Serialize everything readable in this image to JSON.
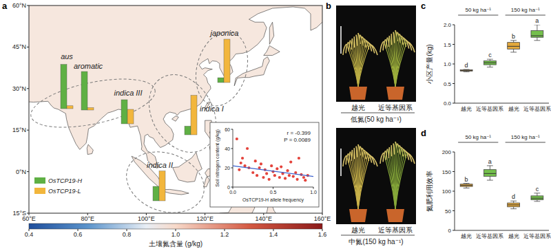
{
  "panel_labels": [
    "a",
    "b",
    "c",
    "d"
  ],
  "chart_data": [
    {
      "type": "map",
      "xlim": [
        60,
        160
      ],
      "xticks": [
        {
          "value": 60,
          "label": "60°E"
        },
        {
          "value": 80,
          "label": "80°E"
        },
        {
          "value": 100,
          "label": "100°E"
        },
        {
          "value": 120,
          "label": "120°E"
        },
        {
          "value": 140,
          "label": "140°E"
        },
        {
          "value": 160,
          "label": "160°E"
        }
      ],
      "ylim": [
        -15,
        60
      ],
      "yticks": [
        {
          "value": 60,
          "label": "60°N"
        },
        {
          "value": 45,
          "label": "45°N"
        },
        {
          "value": 30,
          "label": "30°N"
        },
        {
          "value": 15,
          "label": "15°N"
        },
        {
          "value": 0,
          "label": "0°N"
        },
        {
          "value": -15,
          "label": "15°S"
        }
      ],
      "color_bar": {
        "label": "土壤氮含量 (g/kg)",
        "range": [
          0.4,
          1.6
        ],
        "ticks": [
          0.4,
          0.6,
          0.8,
          {
            "value": 1,
            "label": "1.0"
          },
          1.2,
          1.4,
          1.6
        ]
      }
    },
    {
      "type": "bar",
      "categories": [
        "aus",
        "aromatic",
        "indica III",
        "indica I",
        "indica II",
        "japonica"
      ],
      "series": [
        {
          "name": "OsTCP19-H",
          "color": "#5fb044",
          "values": [
            0.92,
            0.8,
            0.5,
            0.18,
            0.3,
            0.1
          ]
        },
        {
          "name": "OsTCP19-L",
          "color": "#f2b63c",
          "values": [
            0.06,
            0.05,
            0.3,
            0.82,
            0.62,
            0.9
          ]
        }
      ],
      "ylim": [
        0,
        1
      ],
      "tick_labels": false,
      "legend": "lower left"
    },
    {
      "type": "scatter",
      "x_label": "OsTCP19-H allele frequency",
      "y_label": "Soil nitrogen content (g/kg)",
      "xlim": [
        0,
        1
      ],
      "xticks": [
        {
          "value": 0,
          "label": "0.0"
        },
        {
          "value": 0.5,
          "label": "0.5"
        },
        {
          "value": 1,
          "label": "1.0"
        }
      ],
      "ylim": [
        0,
        60
      ],
      "yticks": [
        0,
        20,
        40,
        60
      ],
      "annotations": [
        "r = -0.399",
        "P = 0.0089"
      ],
      "series": [
        {
          "type": "scatter",
          "marker": "circle",
          "color": "#e4433b",
          "x": [
            0.05,
            0.08,
            0.1,
            0.12,
            0.15,
            0.18,
            0.2,
            0.25,
            0.28,
            0.3,
            0.33,
            0.35,
            0.38,
            0.4,
            0.42,
            0.45,
            0.48,
            0.5,
            0.52,
            0.55,
            0.58,
            0.6,
            0.62,
            0.65,
            0.68,
            0.7,
            0.72,
            0.75,
            0.78,
            0.8,
            0.82,
            0.85,
            0.88,
            0.9,
            0.93
          ],
          "values": [
            50,
            18,
            25,
            30,
            22,
            40,
            20,
            15,
            27,
            12,
            20,
            24,
            10,
            18,
            14,
            8,
            22,
            16,
            12,
            19,
            10,
            21,
            14,
            9,
            17,
            12,
            26,
            11,
            15,
            8,
            30,
            13,
            10,
            7,
            12
          ]
        },
        {
          "type": "line",
          "line_style": "solid",
          "color": "#3a5fcd",
          "x": [
            0,
            1
          ],
          "values": [
            22,
            11
          ]
        }
      ]
    },
    {
      "type": "box",
      "y_label": "小区产量(kg)",
      "categories": [
        "越光",
        "近等基因系",
        "越光",
        "近等基因系"
      ],
      "groups": [
        "50 kg ha⁻¹",
        "150 kg ha⁻¹"
      ],
      "colors": [
        "#e3a83b",
        "#74c04c",
        "#e3a83b",
        "#74c04c"
      ],
      "min": [
        0.8,
        0.92,
        1.3,
        1.6
      ],
      "q1": [
        0.82,
        0.98,
        1.38,
        1.68
      ],
      "median": [
        0.83,
        1.03,
        1.45,
        1.72
      ],
      "q3": [
        0.85,
        1.08,
        1.55,
        1.85
      ],
      "max": [
        0.86,
        1.12,
        1.6,
        2.0
      ],
      "annotations": [
        "d",
        "c",
        "b",
        "a"
      ],
      "ylim": [
        0,
        2
      ],
      "yticks": [
        {
          "value": 0,
          "label": "0.0"
        },
        {
          "value": 0.5,
          "label": "0.5"
        },
        {
          "value": 1,
          "label": "1.0"
        },
        {
          "value": 1.5,
          "label": "1.5"
        },
        {
          "value": 2,
          "label": "2.0"
        }
      ]
    },
    {
      "type": "box",
      "y_label": "氮肥利用效率",
      "categories": [
        "越光",
        "近等基因系",
        "越光",
        "近等基因系"
      ],
      "groups": [
        "50 kg ha⁻¹",
        "150 kg ha⁻¹"
      ],
      "colors": [
        "#e3a83b",
        "#74c04c",
        "#e3a83b",
        "#74c04c"
      ],
      "min": [
        108,
        128,
        55,
        74
      ],
      "q1": [
        112,
        138,
        60,
        78
      ],
      "median": [
        115,
        145,
        65,
        82
      ],
      "q3": [
        118,
        155,
        70,
        88
      ],
      "max": [
        120,
        165,
        75,
        95
      ],
      "annotations": [
        "b",
        "a",
        "d",
        "c"
      ],
      "ylim": [
        0,
        200
      ],
      "yticks": [
        0,
        50,
        100,
        150,
        200
      ]
    }
  ],
  "photos": [
    {
      "title": "低氮(50 kg ha⁻¹)",
      "labels": [
        "越光",
        "近等基因系"
      ]
    },
    {
      "title": "中氮(150 kg ha⁻¹)",
      "labels": [
        "越光",
        "近等基因系"
      ]
    }
  ]
}
